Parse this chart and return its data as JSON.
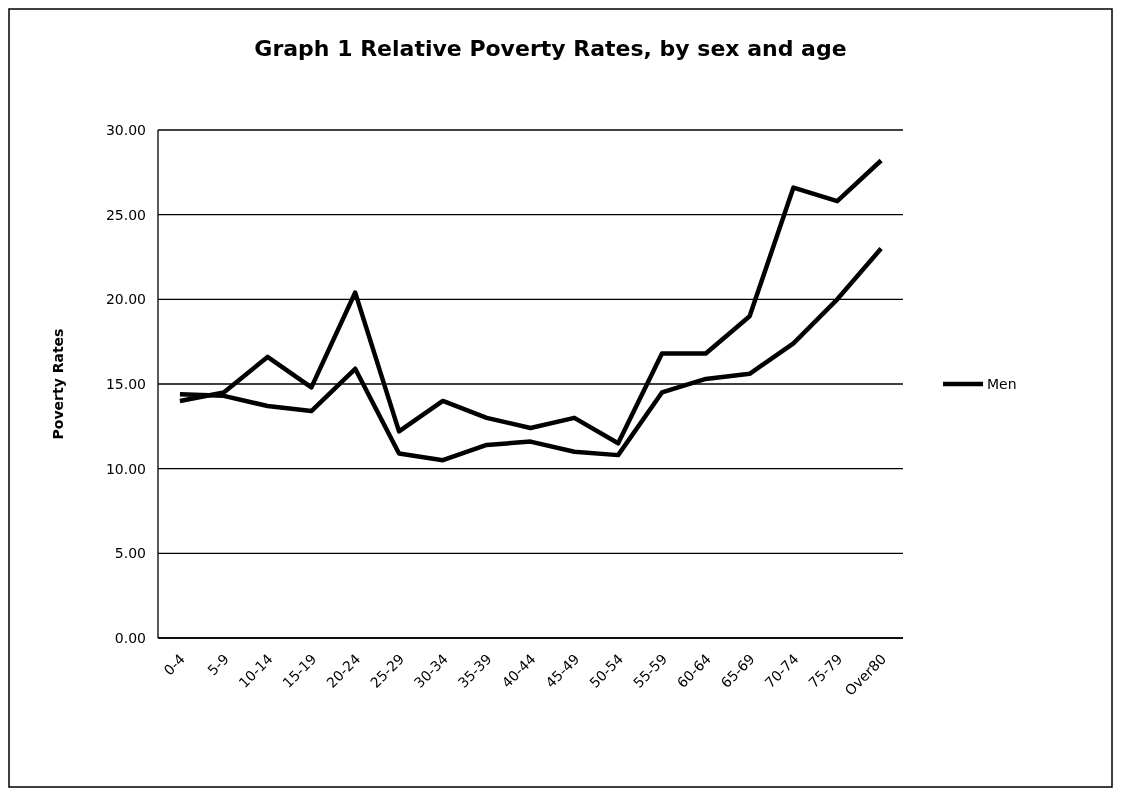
{
  "chart_data": {
    "type": "line",
    "title": "Graph 1  Relative Poverty Rates, by sex and age",
    "ylabel": "Poverty Rates",
    "categories": [
      "0-4",
      "5-9",
      "10-14",
      "15-19",
      "20-24",
      "25-29",
      "30-34",
      "35-39",
      "40-44",
      "45-49",
      "50-54",
      "55-59",
      "60-64",
      "65-69",
      "70-74",
      "75-79",
      "Over80"
    ],
    "series": [
      {
        "color": "#000000",
        "values": [
          14.0,
          14.5,
          16.6,
          14.8,
          20.4,
          12.2,
          14.0,
          13.0,
          12.4,
          13.0,
          11.5,
          16.8,
          16.8,
          19.0,
          26.6,
          25.8,
          28.2
        ]
      },
      {
        "name": "Men",
        "color": "#000000",
        "values": [
          14.4,
          14.3,
          13.7,
          13.4,
          15.9,
          10.9,
          10.5,
          11.4,
          11.6,
          11.0,
          10.8,
          14.5,
          15.3,
          15.6,
          17.4,
          20.0,
          23.0
        ]
      }
    ],
    "ylim": [
      0,
      30
    ],
    "yticks": [
      {
        "value": 0,
        "label": "0.00"
      },
      {
        "value": 5,
        "label": "5.00"
      },
      {
        "value": 10,
        "label": "10.00"
      },
      {
        "value": 15,
        "label": "15.00"
      },
      {
        "value": 20,
        "label": "20.00"
      },
      {
        "value": 25,
        "label": "25.00"
      },
      {
        "value": 30,
        "label": "30.00"
      }
    ],
    "grid": "y",
    "legend": "right",
    "marker": "none",
    "line_style": "solid"
  }
}
